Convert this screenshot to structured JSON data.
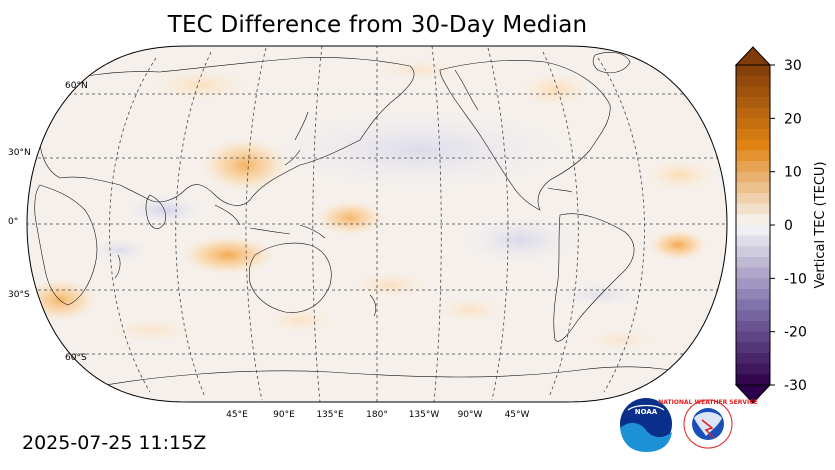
{
  "title": "TEC Difference from 30-Day Median",
  "timestamp": "2025-07-25 11:15Z",
  "map": {
    "projection": "Robinson",
    "central_longitude": 180,
    "lat_labels": [
      "60°N",
      "30°N",
      "0°",
      "30°S",
      "60°S"
    ],
    "lon_labels": [
      "45°E",
      "90°E",
      "135°E",
      "180°",
      "135°W",
      "90°W",
      "45°W"
    ],
    "gridlines": "dashed"
  },
  "colorbar": {
    "label": "Vertical TEC (TECU)",
    "ticks": [
      "30",
      "20",
      "10",
      "0",
      "-10",
      "-20",
      "-30"
    ],
    "range": [
      -30,
      30
    ],
    "extend": "both",
    "colors": {
      "high": "#7f3b08",
      "mid_high": "#e08214",
      "neutral": "#f7f7f7",
      "mid_low": "#8073ac",
      "low": "#2d004b"
    }
  },
  "logos": {
    "noaa": "NOAA",
    "nws": "NATIONAL WEATHER SERVICE"
  }
}
